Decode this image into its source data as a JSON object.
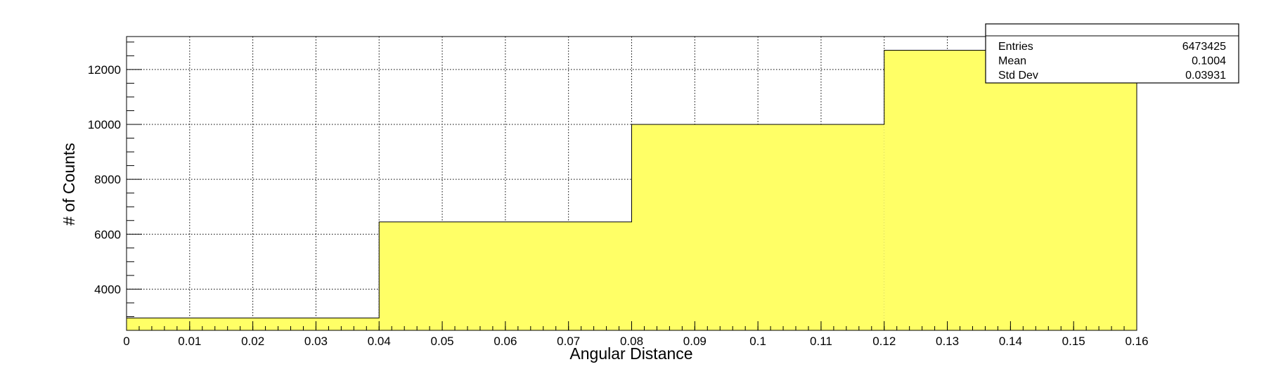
{
  "chart_data": {
    "type": "bar",
    "bin_edges": [
      0,
      0.04,
      0.08,
      0.12,
      0.16
    ],
    "values": [
      2950,
      6450,
      10000,
      12700
    ],
    "xlabel": "Angular Distance",
    "ylabel": "# of Counts",
    "xlim": [
      0,
      0.16
    ],
    "ylim": [
      2500,
      13200
    ],
    "x_ticks": [
      0,
      0.01,
      0.02,
      0.03,
      0.04,
      0.05,
      0.06,
      0.07,
      0.08,
      0.09,
      0.1,
      0.11,
      0.12,
      0.13,
      0.14,
      0.15,
      0.16
    ],
    "x_tick_labels": [
      "0",
      "0.01",
      "0.02",
      "0.03",
      "0.04",
      "0.05",
      "0.06",
      "0.07",
      "0.08",
      "0.09",
      "0.1",
      "0.11",
      "0.12",
      "0.13",
      "0.14",
      "0.15",
      "0.16"
    ],
    "y_ticks": [
      4000,
      6000,
      8000,
      10000,
      12000
    ],
    "y_tick_labels": [
      "4000",
      "6000",
      "8000",
      "10000",
      "12000"
    ],
    "y_minor_step": 500,
    "grid": true,
    "colors": {
      "fill": "#ffff66",
      "line": "#000000",
      "grid": "#000000"
    },
    "stats_box": {
      "placement": "top-right",
      "rows": [
        {
          "label": "Entries",
          "value": "6473425"
        },
        {
          "label": "Mean",
          "value": "0.1004"
        },
        {
          "label": "Std Dev",
          "value": "0.03931"
        }
      ]
    }
  }
}
